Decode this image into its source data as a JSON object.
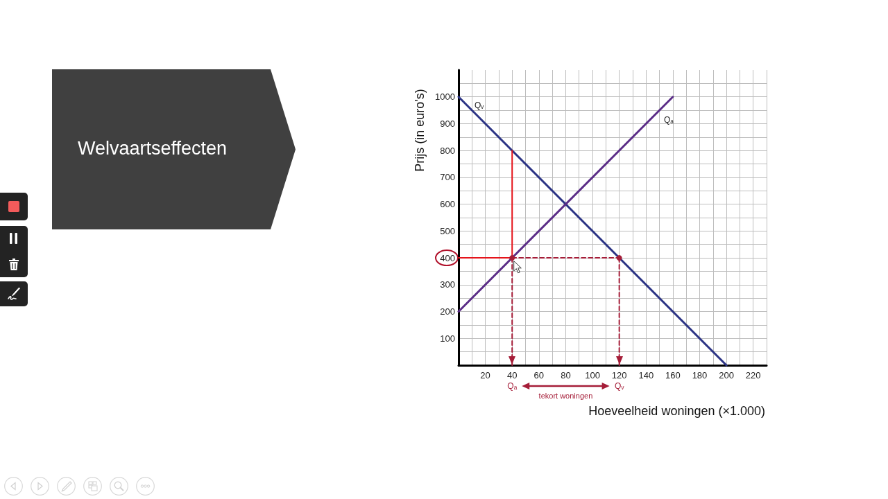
{
  "chart_data": {
    "type": "line",
    "title": "Welvaartseffecten",
    "xlabel": "Hoeveelheid woningen (×1.000)",
    "ylabel": "Prijs (in euro's)",
    "xlim": [
      0,
      230
    ],
    "ylim": [
      0,
      1100
    ],
    "xticks": [
      {
        "value": 10,
        "label": null
      },
      20,
      {
        "value": 30,
        "label": null
      },
      40,
      {
        "value": 50,
        "label": null
      },
      60,
      {
        "value": 70,
        "label": null
      },
      80,
      {
        "value": 90,
        "label": null
      },
      100,
      {
        "value": 110,
        "label": null
      },
      120,
      {
        "value": 130,
        "label": null
      },
      140,
      {
        "value": 150,
        "label": null
      },
      160,
      {
        "value": 170,
        "label": null
      },
      180,
      {
        "value": 190,
        "label": null
      },
      200,
      {
        "value": 210,
        "label": null
      },
      220,
      {
        "value": 230,
        "label": null
      }
    ],
    "yticks": [
      {
        "value": 50,
        "label": null
      },
      100,
      {
        "value": 150,
        "label": null
      },
      200,
      {
        "value": 250,
        "label": null
      },
      300,
      {
        "value": 350,
        "label": null
      },
      400,
      {
        "value": 450,
        "label": null
      },
      500,
      {
        "value": 550,
        "label": null
      },
      600,
      {
        "value": 650,
        "label": null
      },
      700,
      {
        "value": 750,
        "label": null
      },
      800,
      {
        "value": 850,
        "label": null
      },
      900,
      {
        "value": 950,
        "label": null
      },
      1000,
      {
        "value": 1050,
        "label": null
      }
    ],
    "grid": true,
    "marker": "none",
    "line_style": "solid",
    "series": [
      {
        "name": "Qᵥ",
        "color": "#2c3485",
        "x": [
          0,
          200
        ],
        "values": [
          1000,
          0
        ]
      },
      {
        "name": "Qₐ",
        "color": "#5b2d87",
        "x": [
          0,
          160
        ],
        "values": [
          200,
          1000
        ]
      },
      {
        "color": "#e5141b",
        "x": [
          0,
          40,
          40
        ],
        "values": [
          400,
          400,
          800
        ]
      },
      {
        "color": "#a51d38",
        "x": [
          40,
          120
        ],
        "values": [
          400,
          400
        ],
        "marker": "circle",
        "line_style": "dashed"
      },
      {
        "color": "#a51d38",
        "x": [
          40,
          40
        ],
        "values": [
          400,
          0
        ],
        "line_style": "dashed"
      },
      {
        "color": "#a51d38",
        "x": [
          120,
          120
        ],
        "values": [
          400,
          0
        ],
        "line_style": "dashed"
      }
    ],
    "annotations": [
      "Qₐ",
      "Qᵥ",
      "tekort woningen"
    ]
  }
}
